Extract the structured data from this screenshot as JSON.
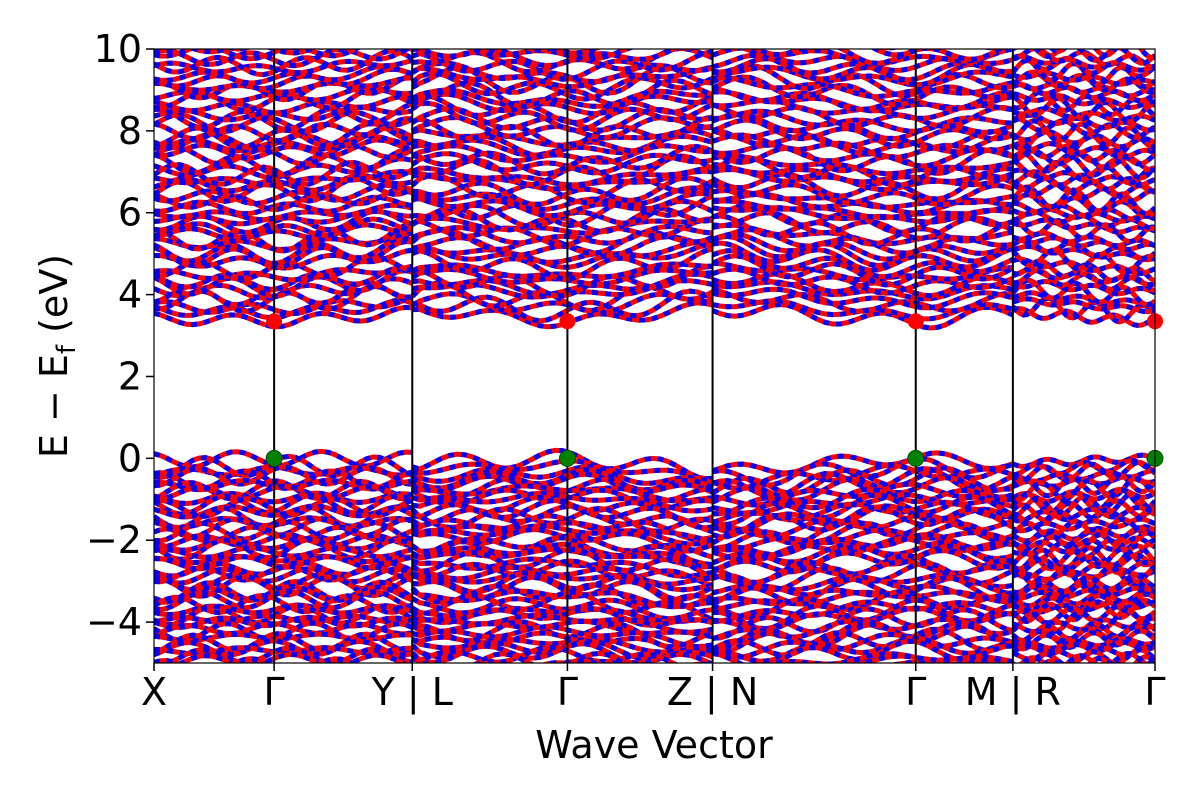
{
  "chart_data": {
    "type": "line",
    "title": "",
    "xlabel": "Wave Vector",
    "ylabel_main": "E − E",
    "ylabel_sub": "f",
    "ylabel_unit": " (eV)",
    "ylim": [
      -5,
      10
    ],
    "yticks": [
      -4,
      -2,
      0,
      2,
      4,
      6,
      8,
      10
    ],
    "ytick_labels": [
      "−4",
      "−2",
      "0",
      "2",
      "4",
      "6",
      "8",
      "10"
    ],
    "grid": false,
    "legend": "none",
    "path_segments": [
      {
        "labels": [
          "X",
          "Γ",
          "Y"
        ],
        "k": [
          0.0,
          0.12,
          0.258
        ]
      },
      {
        "labels": [
          "L",
          "Γ",
          "Z"
        ],
        "k": [
          0.258,
          0.413,
          0.558
        ]
      },
      {
        "labels": [
          "N",
          "Γ",
          "M"
        ],
        "k": [
          0.558,
          0.761,
          0.858
        ]
      },
      {
        "labels": [
          "R",
          "Γ"
        ],
        "k": [
          0.858,
          1.0
        ]
      }
    ],
    "xtick_labels": [
      "X",
      "Γ",
      "Y | L",
      "Γ",
      "Z | N",
      "Γ",
      "M | R",
      "Γ"
    ],
    "xtick_positions": [
      0.0,
      0.12,
      0.258,
      0.413,
      0.558,
      0.761,
      0.858,
      1.0
    ],
    "conduction_band_minimum_eV": 3.35,
    "valence_band_maximum_eV": 0.0,
    "cbm_markers_k": [
      0.12,
      0.413,
      0.761,
      1.0
    ],
    "vbm_markers_k": [
      0.12,
      0.413,
      0.761,
      1.0
    ],
    "band_colors": {
      "spin_up": "#ff0000",
      "spin_down": "#0000ff"
    },
    "marker_colors": {
      "cbm": "#ff0000",
      "vbm": "#008000"
    },
    "vbm_edge_profile": [
      {
        "k": 0.0,
        "e": -0.05
      },
      {
        "k": 0.12,
        "e": 0.0
      },
      {
        "k": 0.258,
        "e": -0.02
      },
      {
        "k": 0.26,
        "e": -0.12
      },
      {
        "k": 0.413,
        "e": 0.0
      },
      {
        "k": 0.558,
        "e": -0.3
      },
      {
        "k": 0.761,
        "e": 0.0
      },
      {
        "k": 0.858,
        "e": -0.12
      },
      {
        "k": 1.0,
        "e": 0.0
      }
    ],
    "cbm_edge_profile": [
      {
        "k": 0.0,
        "e": 3.42
      },
      {
        "k": 0.12,
        "e": 3.35
      },
      {
        "k": 0.258,
        "e": 3.55
      },
      {
        "k": 0.26,
        "e": 3.62
      },
      {
        "k": 0.413,
        "e": 3.35
      },
      {
        "k": 0.558,
        "e": 3.66
      },
      {
        "k": 0.761,
        "e": 3.35
      },
      {
        "k": 0.858,
        "e": 3.55
      },
      {
        "k": 1.0,
        "e": 3.35
      }
    ]
  }
}
